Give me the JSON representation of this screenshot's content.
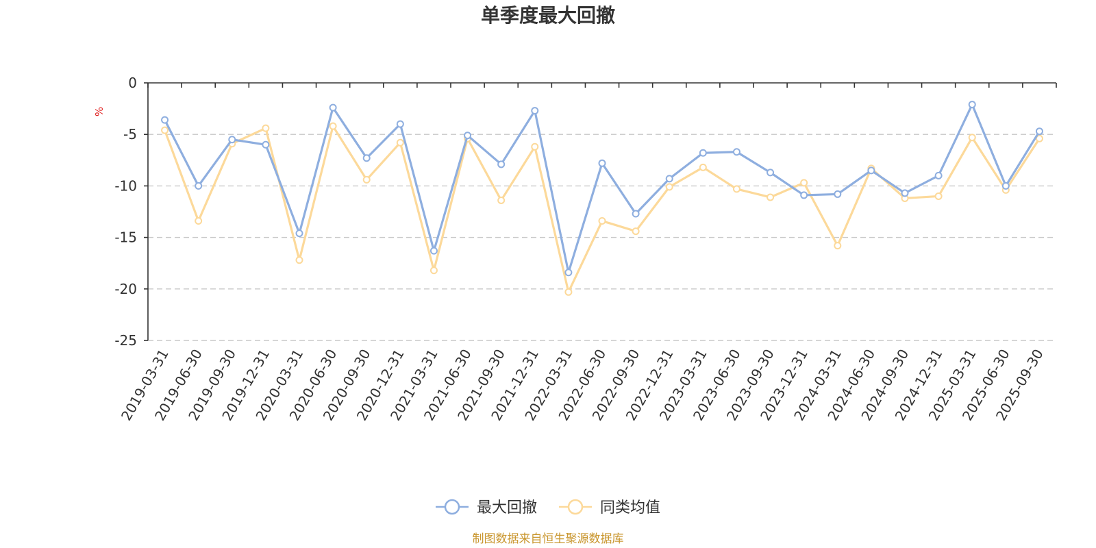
{
  "chart_data": {
    "type": "line",
    "title": "单季度最大回撤",
    "ylabel": "%",
    "ylim": [
      -25,
      0
    ],
    "yticks": [
      0,
      -5,
      -10,
      -15,
      -20,
      -25
    ],
    "grid": true,
    "legend_position": "bottom",
    "categories": [
      "2019-03-31",
      "2019-06-30",
      "2019-09-30",
      "2019-12-31",
      "2020-03-31",
      "2020-06-30",
      "2020-09-30",
      "2020-12-31",
      "2021-03-31",
      "2021-06-30",
      "2021-09-30",
      "2021-12-31",
      "2022-03-31",
      "2022-06-30",
      "2022-09-30",
      "2022-12-31",
      "2023-03-31",
      "2023-06-30",
      "2023-09-30",
      "2023-12-31",
      "2024-03-31",
      "2024-06-30",
      "2024-09-30",
      "2024-12-31",
      "2025-03-31",
      "2025-06-30",
      "2025-09-30"
    ],
    "series": [
      {
        "name": "最大回撤",
        "color": "#8eaedf",
        "values": [
          -3.6,
          -10.0,
          -5.5,
          -6.0,
          -14.6,
          -2.4,
          -7.3,
          -4.0,
          -16.3,
          -5.1,
          -7.9,
          -2.7,
          -18.4,
          -7.8,
          -12.7,
          -9.3,
          -6.8,
          -6.7,
          -8.7,
          -10.9,
          -10.8,
          -8.5,
          -10.7,
          -9.0,
          -2.1,
          -10.0,
          -4.7
        ]
      },
      {
        "name": "同类均值",
        "color": "#fcd99a",
        "values": [
          -4.6,
          -13.4,
          -5.9,
          -4.4,
          -17.2,
          -4.2,
          -9.4,
          -5.8,
          -18.2,
          -5.4,
          -11.4,
          -6.2,
          -20.3,
          -13.4,
          -14.4,
          -10.1,
          -8.2,
          -10.3,
          -11.1,
          -9.7,
          -15.8,
          -8.3,
          -11.2,
          -11.0,
          -5.3,
          -10.4,
          -5.4
        ]
      }
    ]
  },
  "legend": {
    "item1_label": "最大回撤",
    "item2_label": "同类均值"
  },
  "footer": {
    "source_text": "制图数据来自恒生聚源数据库"
  }
}
